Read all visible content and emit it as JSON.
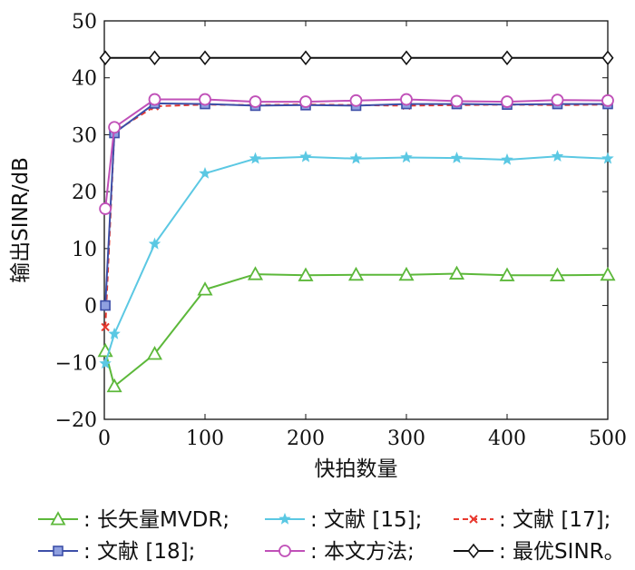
{
  "chart_data": {
    "type": "line",
    "title": "",
    "xlabel": "快拍数量",
    "ylabel": "输出SINR/dB",
    "xlim": [
      0,
      500
    ],
    "ylim": [
      -20,
      50
    ],
    "xticks": [
      "0",
      "100",
      "200",
      "300",
      "400",
      "500"
    ],
    "yticks": [
      "-20",
      "-10",
      "0",
      "10",
      "20",
      "30",
      "40",
      "50"
    ],
    "grid": false,
    "legend_position": "bottom",
    "series": [
      {
        "name": "长矢量MVDR;",
        "color": "#5cb83a",
        "marker": "triangle",
        "dash": "solid",
        "x": [
          1,
          10,
          50,
          100,
          150,
          200,
          250,
          300,
          350,
          400,
          450,
          500
        ],
        "y": [
          -8.0,
          -14.2,
          -8.5,
          2.8,
          5.5,
          5.3,
          5.4,
          5.4,
          5.6,
          5.3,
          5.3,
          5.4
        ]
      },
      {
        "name": "文献 [15];",
        "color": "#5bc8e3",
        "marker": "star",
        "dash": "solid",
        "x": [
          1,
          10,
          50,
          100,
          150,
          200,
          250,
          300,
          350,
          400,
          450,
          500
        ],
        "y": [
          -10.2,
          -5.0,
          10.8,
          23.2,
          25.8,
          26.1,
          25.8,
          26.0,
          25.9,
          25.6,
          26.2,
          25.8
        ]
      },
      {
        "name": "文献 [17];",
        "color": "#e8392f",
        "marker": "x",
        "dash": "dashed",
        "x": [
          1,
          10,
          50,
          100,
          150,
          200,
          250,
          300,
          350,
          400,
          450,
          500
        ],
        "y": [
          -3.8,
          30.5,
          35.0,
          35.3,
          35.2,
          35.3,
          35.2,
          35.1,
          35.2,
          35.3,
          35.2,
          35.3
        ]
      },
      {
        "name": "文献 [18];",
        "color": "#3d4fa8",
        "marker": "square",
        "dash": "solid",
        "x": [
          1,
          10,
          50,
          100,
          150,
          200,
          250,
          300,
          350,
          400,
          450,
          500
        ],
        "y": [
          0.0,
          30.3,
          35.5,
          35.4,
          35.1,
          35.2,
          35.1,
          35.4,
          35.4,
          35.3,
          35.4,
          35.4
        ]
      },
      {
        "name": "本文方法;",
        "color": "#c050b8",
        "marker": "circle",
        "dash": "solid",
        "x": [
          1,
          10,
          50,
          100,
          150,
          200,
          250,
          300,
          350,
          400,
          450,
          500
        ],
        "y": [
          17.0,
          31.3,
          36.2,
          36.2,
          35.8,
          35.8,
          36.0,
          36.2,
          35.9,
          35.8,
          36.1,
          36.0
        ]
      },
      {
        "name": "最优SINR。",
        "color": "#111111",
        "marker": "diamond",
        "dash": "solid",
        "x": [
          1,
          50,
          100,
          200,
          300,
          400,
          500
        ],
        "y": [
          43.5,
          43.5,
          43.5,
          43.5,
          43.5,
          43.5,
          43.5
        ]
      }
    ]
  }
}
